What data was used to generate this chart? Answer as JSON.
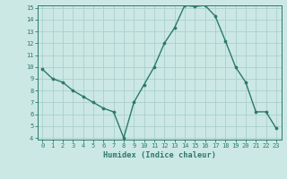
{
  "x": [
    0,
    1,
    2,
    3,
    4,
    5,
    6,
    7,
    8,
    9,
    10,
    11,
    12,
    13,
    14,
    15,
    16,
    17,
    18,
    19,
    20,
    21,
    22,
    23
  ],
  "y": [
    9.8,
    9.0,
    8.7,
    8.0,
    7.5,
    7.0,
    6.5,
    6.2,
    4.0,
    7.0,
    8.5,
    10.0,
    12.0,
    13.3,
    15.2,
    15.1,
    15.2,
    14.3,
    12.2,
    10.0,
    8.7,
    6.2,
    6.2,
    4.8
  ],
  "xlabel": "Humidex (Indice chaleur)",
  "ylim": [
    4,
    15
  ],
  "xlim": [
    -0.5,
    23.5
  ],
  "yticks": [
    4,
    5,
    6,
    7,
    8,
    9,
    10,
    11,
    12,
    13,
    14,
    15
  ],
  "xticks": [
    0,
    1,
    2,
    3,
    4,
    5,
    6,
    7,
    8,
    9,
    10,
    11,
    12,
    13,
    14,
    15,
    16,
    17,
    18,
    19,
    20,
    21,
    22,
    23
  ],
  "line_color": "#2a7a6a",
  "marker_color": "#2a7a6a",
  "bg_color": "#cce8e4",
  "grid_color": "#aad0cc",
  "axis_color": "#2a7a6a",
  "tick_fontsize": 5.0,
  "xlabel_fontsize": 6.2,
  "linewidth": 1.0,
  "markersize": 2.2
}
